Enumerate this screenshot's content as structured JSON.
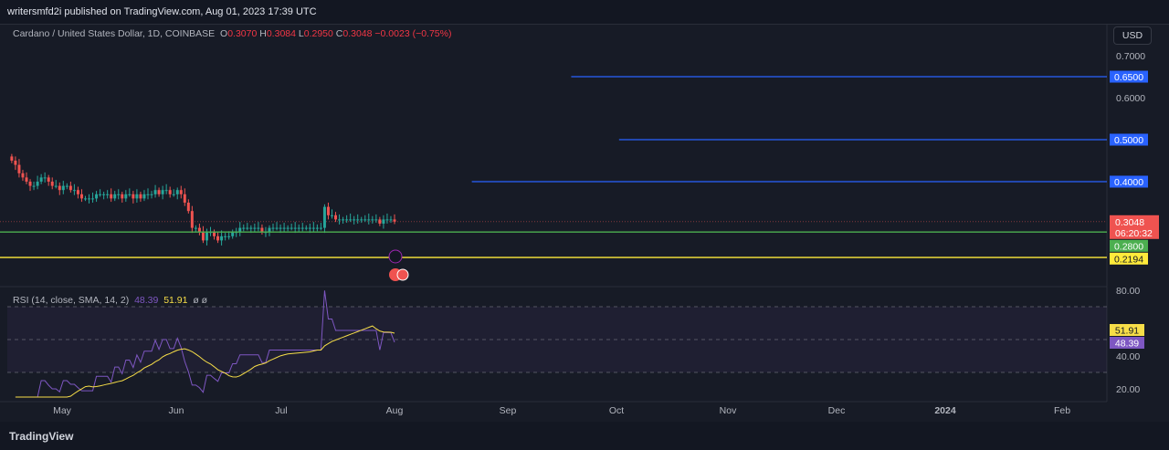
{
  "header": {
    "published": "writersmfd2i published on TradingView.com, Aug 01, 2023 17:39 UTC"
  },
  "legend": {
    "symbol": "Cardano / United States Dollar, 1D, COINBASE",
    "o_label": "O",
    "o": "0.3070",
    "h_label": "H",
    "h": "0.3084",
    "l_label": "L",
    "l": "0.2950",
    "c_label": "C",
    "c": "0.3048",
    "change": "−0.0023 (−0.75%)"
  },
  "currency": "USD",
  "rsi_legend": {
    "title": "RSI (14, close, SMA, 14, 2)",
    "rsi": "48.39",
    "sma": "51.91",
    "extra": "ø ø"
  },
  "footer": {
    "brand": "TradingView"
  },
  "colors": {
    "up": "#26a69a",
    "down": "#ef5350",
    "rsi": "#7e57c2",
    "sma": "#f7de48",
    "hline_blue": "#2962ff",
    "hline_green": "#4caf50",
    "hline_yellow": "#ffeb3b"
  },
  "chart_data": [
    {
      "type": "candlestick",
      "price_axis": {
        "ticks": [
          "0.7000",
          "0.6000"
        ],
        "range": [
          0.19,
          0.72
        ]
      },
      "x_ticks": [
        "May",
        "Jun",
        "Jul",
        "Aug",
        "Sep",
        "Oct",
        "Nov",
        "Dec",
        "2024",
        "Feb"
      ],
      "start_date": "2023-04-19",
      "end_date": "2023-08-01",
      "closes": [
        0.45,
        0.44,
        0.42,
        0.41,
        0.4,
        0.39,
        0.39,
        0.4,
        0.41,
        0.41,
        0.4,
        0.39,
        0.39,
        0.38,
        0.39,
        0.39,
        0.38,
        0.38,
        0.37,
        0.36,
        0.36,
        0.36,
        0.36,
        0.37,
        0.37,
        0.37,
        0.37,
        0.36,
        0.37,
        0.37,
        0.36,
        0.37,
        0.37,
        0.36,
        0.37,
        0.36,
        0.37,
        0.37,
        0.37,
        0.38,
        0.37,
        0.38,
        0.38,
        0.37,
        0.37,
        0.38,
        0.37,
        0.35,
        0.33,
        0.29,
        0.29,
        0.28,
        0.26,
        0.28,
        0.28,
        0.27,
        0.26,
        0.27,
        0.27,
        0.27,
        0.28,
        0.28,
        0.29,
        0.29,
        0.29,
        0.29,
        0.29,
        0.29,
        0.28,
        0.28,
        0.29,
        0.29,
        0.29,
        0.29,
        0.29,
        0.29,
        0.29,
        0.29,
        0.29,
        0.29,
        0.29,
        0.29,
        0.29,
        0.29,
        0.29,
        0.34,
        0.32,
        0.32,
        0.31,
        0.31,
        0.31,
        0.31,
        0.31,
        0.31,
        0.31,
        0.31,
        0.31,
        0.31,
        0.31,
        0.31,
        0.3,
        0.31,
        0.31,
        0.31,
        0.3048
      ],
      "horizontal_lines": [
        {
          "value": 0.65,
          "label": "0.6500",
          "color": "#2962ff",
          "from": "2023-09-18"
        },
        {
          "value": 0.5,
          "label": "0.5000",
          "color": "#2962ff",
          "from": "2023-10-01"
        },
        {
          "value": 0.4,
          "label": "0.4000",
          "color": "#2962ff",
          "from": "2023-08-22"
        },
        {
          "value": 0.28,
          "label": "0.2800",
          "color": "#4caf50"
        },
        {
          "value": 0.2194,
          "label": "0.2194",
          "color": "#ffeb3b"
        }
      ],
      "last_price": {
        "value": 0.3048,
        "label": "0.3048",
        "countdown": "06:20:32"
      }
    },
    {
      "type": "line",
      "name": "RSI",
      "y_ticks": [
        "80.00",
        "40.00",
        "20.00"
      ],
      "bands": [
        30,
        70
      ],
      "range": [
        15,
        82
      ]
    }
  ]
}
